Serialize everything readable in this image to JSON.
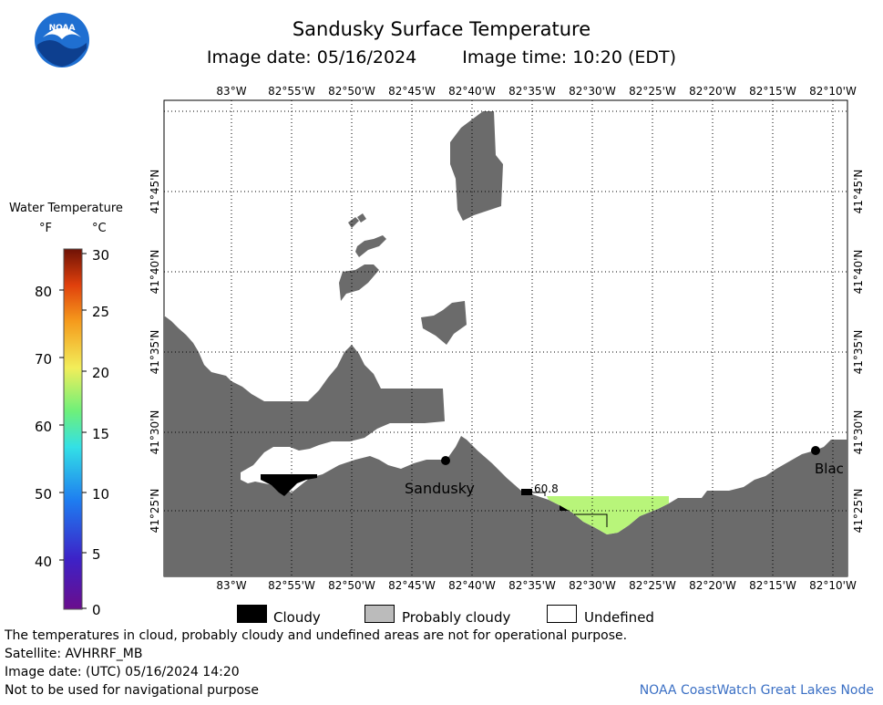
{
  "header": {
    "title": "Sandusky Surface Temperature",
    "image_date": "Image date: 05/16/2024",
    "image_time": "Image time: 10:20 (EDT)"
  },
  "logo": {
    "text": "NOAA",
    "icon": "noaa-logo-icon"
  },
  "color_scale": {
    "title": "Water Temperature",
    "unit_f": "°F",
    "unit_c": "°C",
    "f_labels": [
      "80",
      "70",
      "60",
      "50",
      "40"
    ],
    "c_labels": [
      "30",
      "25",
      "20",
      "15",
      "10",
      "5",
      "0"
    ]
  },
  "map": {
    "lon_labels": [
      "83°W",
      "82°55'W",
      "82°50'W",
      "82°45'W",
      "82°40'W",
      "82°35'W",
      "82°30'W",
      "82°25'W",
      "82°20'W",
      "82°15'W",
      "82°10'W"
    ],
    "lat_labels": [
      "41°45'N",
      "41°40'N",
      "41°35'N",
      "41°30'N",
      "41°25'N"
    ],
    "places": [
      "Sandusky",
      "Blac"
    ],
    "temp_reading": "60.8",
    "land_color": "#6b6b6b",
    "warm_water_color": "#b8f57a"
  },
  "legend": {
    "cloudy": "Cloudy",
    "probably_cloudy": "Probably cloudy",
    "undefined": "Undefined"
  },
  "footer": {
    "disclaimer": "The temperatures in cloud, probably cloudy and undefined areas are not for operational purpose.",
    "satellite": "Satellite: AVHRRF_MB",
    "utc_date": "Image date: (UTC) 05/16/2024  14:20",
    "nav_warning": "Not to be used for navigational purpose",
    "credit": "NOAA CoastWatch Great Lakes Node"
  }
}
